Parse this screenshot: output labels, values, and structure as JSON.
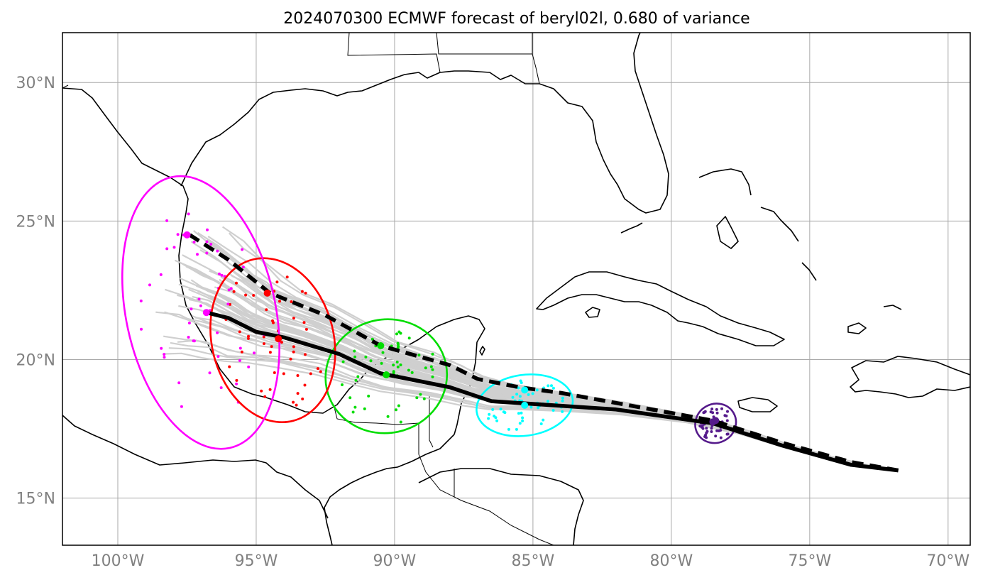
{
  "title": "2024070300 ECMWF forecast of beryl02l, 0.680 of variance",
  "map_extent": {
    "lon_min": -102,
    "lon_max": -69.2,
    "lat_min": 13.3,
    "lat_max": 31.8
  },
  "x_ticks": [
    {
      "lon": -100,
      "label": "100°W"
    },
    {
      "lon": -95,
      "label": "95°W"
    },
    {
      "lon": -90,
      "label": "90°W"
    },
    {
      "lon": -85,
      "label": "85°W"
    },
    {
      "lon": -80,
      "label": "80°W"
    },
    {
      "lon": -75,
      "label": "75°W"
    },
    {
      "lon": -70,
      "label": "70°W"
    }
  ],
  "y_ticks": [
    {
      "lat": 15,
      "label": "15°N"
    },
    {
      "lat": 20,
      "label": "20°N"
    },
    {
      "lat": 25,
      "label": "25°N"
    },
    {
      "lat": 30,
      "label": "30°N"
    }
  ],
  "colors": {
    "member_tracks": "#cfcfcf",
    "mean_tracks": "#000000",
    "day1": "#551a8b",
    "day2": "#00ffff",
    "day3": "#00dd00",
    "day4": "#ff0000",
    "day5": "#ff00ff"
  },
  "mean_tracks": [
    {
      "style": "solid",
      "points": [
        [
          -71.8,
          16.0
        ],
        [
          -73.5,
          16.2
        ],
        [
          -76,
          16.9
        ],
        [
          -78.5,
          17.7
        ],
        [
          -82,
          18.2
        ],
        [
          -85,
          18.4
        ],
        [
          -86.5,
          18.5
        ],
        [
          -88,
          19.0
        ],
        [
          -90.5,
          19.5
        ],
        [
          -92,
          20.2
        ],
        [
          -94,
          20.8
        ],
        [
          -95,
          21.0
        ],
        [
          -96,
          21.5
        ],
        [
          -96.8,
          21.7
        ]
      ]
    },
    {
      "style": "dashed",
      "points": [
        [
          -71.8,
          16.0
        ],
        [
          -73.5,
          16.3
        ],
        [
          -76,
          17.0
        ],
        [
          -78.5,
          17.8
        ],
        [
          -84,
          18.8
        ],
        [
          -85.5,
          19.0
        ],
        [
          -87,
          19.3
        ],
        [
          -88,
          19.8
        ],
        [
          -90.5,
          20.5
        ],
        [
          -92.5,
          21.6
        ],
        [
          -94.5,
          22.4
        ],
        [
          -96,
          23.6
        ],
        [
          -97.4,
          24.5
        ]
      ]
    }
  ],
  "position_clusters": [
    {
      "name": "day1",
      "color": "#551a8b",
      "center": [
        -78.4,
        17.7
      ],
      "ellipse": {
        "rx_deg": 0.75,
        "ry_deg": 0.7,
        "rot": -30
      }
    },
    {
      "name": "day2",
      "color": "#00ffff",
      "center": [
        -85.3,
        18.35
      ],
      "ellipse": {
        "rx_deg": 1.75,
        "ry_deg": 1.1,
        "rot": -8
      }
    },
    {
      "name": "day3",
      "color": "#00dd00",
      "center": [
        -90.3,
        19.4
      ],
      "ellipse": {
        "rx_deg": 2.2,
        "ry_deg": 2.05,
        "rot": -12
      }
    },
    {
      "name": "day4",
      "color": "#ff0000",
      "center": [
        -94.4,
        20.7
      ],
      "ellipse": {
        "rx_deg": 2.2,
        "ry_deg": 3.0,
        "rot": -14
      }
    },
    {
      "name": "day5",
      "color": "#ff00ff",
      "center": [
        -97.0,
        21.7
      ],
      "ellipse": {
        "rx_deg": 2.7,
        "ry_deg": 5.0,
        "rot": -12
      }
    }
  ]
}
